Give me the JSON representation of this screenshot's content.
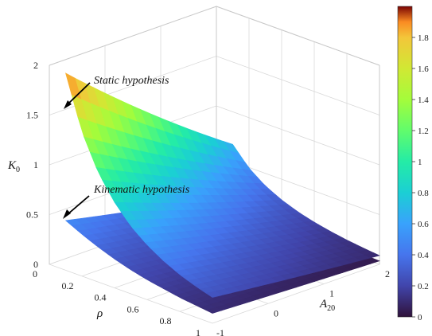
{
  "chart_data": {
    "type": "surface",
    "zlabel": "K",
    "zlabel_sub": "0",
    "xlabel": "ρ",
    "ylabel": "A",
    "ylabel_sub": "20",
    "x_ticks": [
      "0",
      "0.2",
      "0.4",
      "0.6",
      "0.8",
      "1"
    ],
    "y_ticks": [
      "-1",
      "0",
      "1",
      "2"
    ],
    "z_ticks": [
      "0",
      "0.5",
      "1",
      "1.5",
      "2"
    ],
    "xlim": [
      0,
      1
    ],
    "ylim": [
      -1,
      2
    ],
    "zlim": [
      0,
      2
    ],
    "grid": true,
    "colormap": "turbo",
    "colorbar": {
      "range": [
        0,
        2
      ],
      "ticks": [
        "0",
        "0.2",
        "0.4",
        "0.6",
        "0.8",
        "1",
        "1.2",
        "1.4",
        "1.6",
        "1.8"
      ],
      "location": "right"
    },
    "series": [
      {
        "name": "Static hypothesis",
        "description_key": "K0 at A20=-1 edge",
        "x": [
          0.1,
          0.2,
          0.3,
          0.4,
          0.5,
          0.6,
          0.7,
          0.8,
          0.9,
          1.0
        ],
        "y_at_A20_min": [
          1.98,
          1.45,
          1.1,
          0.86,
          0.68,
          0.55,
          0.45,
          0.37,
          0.31,
          0.26
        ]
      },
      {
        "name": "Kinematic hypothesis",
        "description_key": "K0 at A20=-1 edge",
        "x": [
          0.1,
          0.2,
          0.3,
          0.4,
          0.5,
          0.6,
          0.7,
          0.8,
          0.9,
          1.0
        ],
        "y_at_A20_min": [
          0.5,
          0.42,
          0.35,
          0.29,
          0.24,
          0.2,
          0.17,
          0.14,
          0.12,
          0.1
        ]
      }
    ],
    "annotations": [
      "Static hypothesis",
      "Kinematic hypothesis"
    ]
  }
}
